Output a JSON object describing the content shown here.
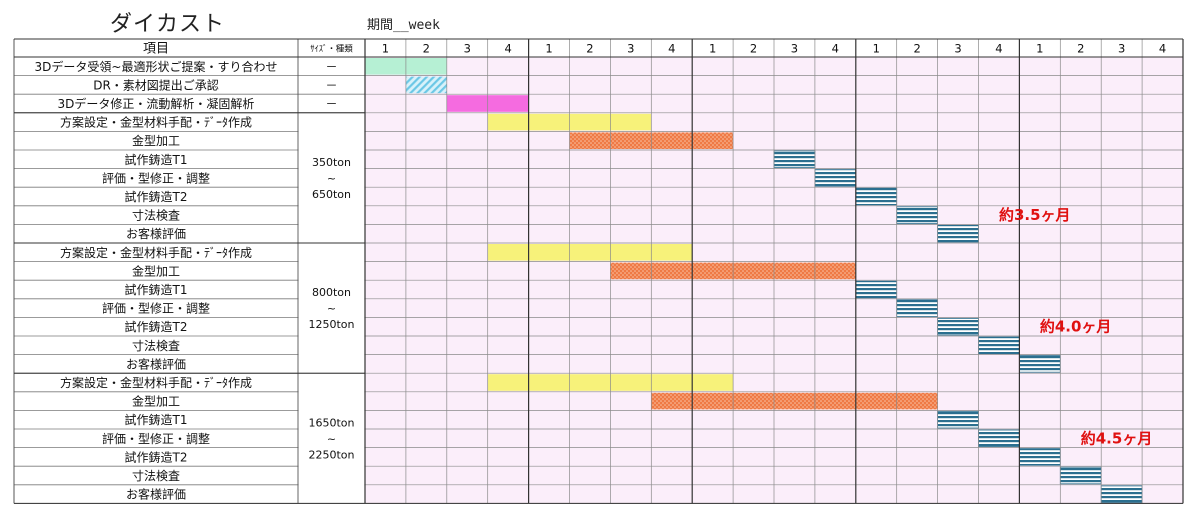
{
  "page": {
    "title": "ダイカスト",
    "period_label": "期間__week"
  },
  "table": {
    "header_item": "項目",
    "header_size": "ｻｲｽﾞ・種類",
    "week_labels": [
      "1",
      "2",
      "3",
      "4",
      "1",
      "2",
      "3",
      "4",
      "1",
      "2",
      "3",
      "4",
      "1",
      "2",
      "3",
      "4",
      "1",
      "2",
      "3",
      "4"
    ]
  },
  "colors": {
    "green": "#b6f0d4",
    "cyan": "#6cc8e6",
    "magenta": "#f56be0",
    "yellow": "#f7f27a",
    "orange": "#ef7a45",
    "navy": "#2b6f8f",
    "cell_bg": "#fbeefa",
    "annotation": "#e01010"
  },
  "chart_data": {
    "type": "table",
    "unit": "week",
    "rows": [
      {
        "item": "3Dデータ受領~最適形状ご提案・すり合わせ",
        "size": "－",
        "start": 0,
        "end": 2,
        "color": "green",
        "pattern": "solid"
      },
      {
        "item": "DR・素材図提出ご承認",
        "size": "－",
        "start": 1,
        "end": 2,
        "color": "cyan",
        "pattern": "diag"
      },
      {
        "item": "3Dデータ修正・流動解析・凝固解析",
        "size": "－",
        "start": 2,
        "end": 4,
        "color": "magenta",
        "pattern": "solid"
      },
      {
        "item": "方案設定・金型材料手配・ﾃﾞｰﾀ作成",
        "start": 3,
        "end": 7,
        "color": "yellow",
        "pattern": "solid"
      },
      {
        "item": "金型加工",
        "start": 5,
        "end": 9,
        "color": "orange",
        "pattern": "dots"
      },
      {
        "item": "試作鋳造T1",
        "start": 10,
        "end": 11,
        "color": "navy",
        "pattern": "stripes"
      },
      {
        "item": "評価・型修正・調整",
        "start": 11,
        "end": 12,
        "color": "navy",
        "pattern": "stripes"
      },
      {
        "item": "試作鋳造T2",
        "start": 12,
        "end": 13,
        "color": "navy",
        "pattern": "stripes"
      },
      {
        "item": "寸法検査",
        "start": 13,
        "end": 14,
        "color": "navy",
        "pattern": "stripes"
      },
      {
        "item": "お客様評価",
        "start": 14,
        "end": 15,
        "color": "navy",
        "pattern": "stripes"
      },
      {
        "item": "方案設定・金型材料手配・ﾃﾞｰﾀ作成",
        "start": 3,
        "end": 8,
        "color": "yellow",
        "pattern": "solid"
      },
      {
        "item": "金型加工",
        "start": 6,
        "end": 12,
        "color": "orange",
        "pattern": "dots"
      },
      {
        "item": "試作鋳造T1",
        "start": 12,
        "end": 13,
        "color": "navy",
        "pattern": "stripes"
      },
      {
        "item": "評価・型修正・調整",
        "start": 13,
        "end": 14,
        "color": "navy",
        "pattern": "stripes"
      },
      {
        "item": "試作鋳造T2",
        "start": 14,
        "end": 15,
        "color": "navy",
        "pattern": "stripes"
      },
      {
        "item": "寸法検査",
        "start": 15,
        "end": 16,
        "color": "navy",
        "pattern": "stripes"
      },
      {
        "item": "お客様評価",
        "start": 16,
        "end": 17,
        "color": "navy",
        "pattern": "stripes"
      },
      {
        "item": "方案設定・金型材料手配・ﾃﾞｰﾀ作成",
        "start": 3,
        "end": 9,
        "color": "yellow",
        "pattern": "solid"
      },
      {
        "item": "金型加工",
        "start": 7,
        "end": 14,
        "color": "orange",
        "pattern": "dots"
      },
      {
        "item": "試作鋳造T1",
        "start": 14,
        "end": 15,
        "color": "navy",
        "pattern": "stripes"
      },
      {
        "item": "評価・型修正・調整",
        "start": 15,
        "end": 16,
        "color": "navy",
        "pattern": "stripes"
      },
      {
        "item": "試作鋳造T2",
        "start": 16,
        "end": 17,
        "color": "navy",
        "pattern": "stripes"
      },
      {
        "item": "寸法検査",
        "start": 17,
        "end": 18,
        "color": "navy",
        "pattern": "stripes"
      },
      {
        "item": "お客様評価",
        "start": 18,
        "end": 19,
        "color": "navy",
        "pattern": "stripes"
      }
    ],
    "groups": [
      {
        "from_row": 3,
        "to_row": 9,
        "size_lines": [
          "350ton",
          "~",
          "650ton"
        ]
      },
      {
        "from_row": 10,
        "to_row": 16,
        "size_lines": [
          "800ton",
          "~",
          "1250ton"
        ]
      },
      {
        "from_row": 17,
        "to_row": 23,
        "size_lines": [
          "1650ton",
          "~",
          "2250ton"
        ]
      }
    ],
    "annotations": [
      {
        "text": "約3.5ヶ月",
        "row": 8,
        "week": 15.5
      },
      {
        "text": "約4.0ヶ月",
        "row": 14,
        "week": 16.5
      },
      {
        "text": "約4.5ヶ月",
        "row": 20,
        "week": 17.5
      }
    ]
  }
}
